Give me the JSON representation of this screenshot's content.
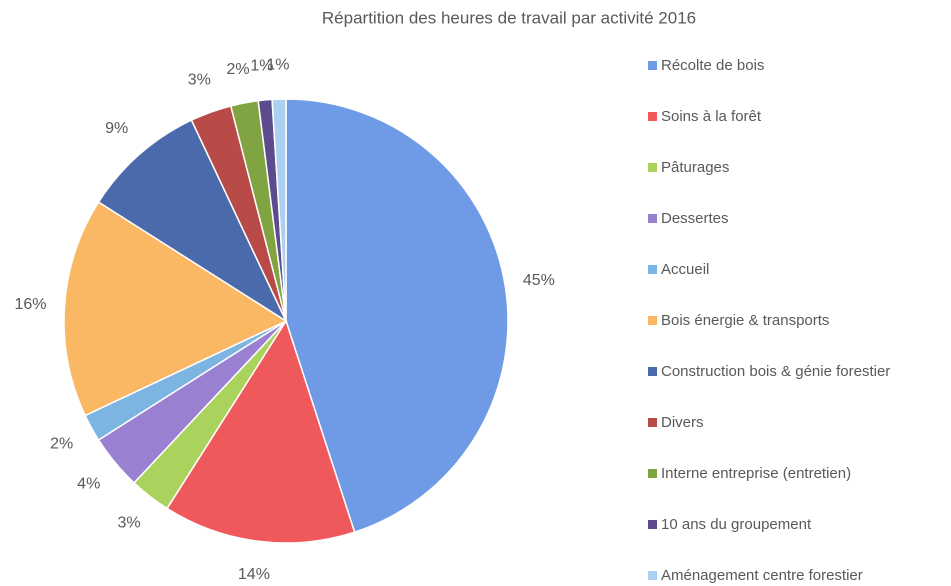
{
  "chart_data": {
    "type": "pie",
    "title": "Répartition des heures de travail par activité 2016",
    "categories": [
      "Récolte de bois",
      "Soins à la forêt",
      "Pâturages",
      "Dessertes",
      "Accueil",
      "Bois énergie & transports",
      "Construction bois & génie forestier",
      "Divers",
      "Interne entreprise (entretien)",
      "10 ans du groupement",
      "Aménagement centre forestier"
    ],
    "values": [
      45,
      14,
      3,
      4,
      2,
      16,
      9,
      3,
      2,
      1,
      1
    ],
    "value_labels": [
      "45%",
      "14%",
      "3%",
      "4%",
      "2%",
      "16%",
      "9%",
      "3%",
      "2%",
      "1%",
      "1%"
    ],
    "colors": [
      "#6f9be6",
      "#f0595c",
      "#a9d35c",
      "#9a80d0",
      "#7db5e2",
      "#fbb864",
      "#4b6aab",
      "#b84a48",
      "#7fa441",
      "#5d4c8d",
      "#abd0f1"
    ],
    "legend": "right"
  }
}
